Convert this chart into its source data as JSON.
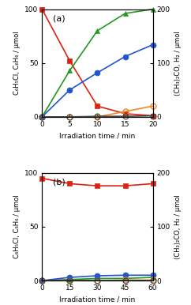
{
  "panel_a": {
    "title": "(a)",
    "xlim": [
      0,
      20
    ],
    "xticks": [
      0,
      5,
      10,
      15,
      20
    ],
    "xlabel": "Irradiation time / min",
    "ylim_left": [
      0,
      100
    ],
    "ylim_right": [
      0,
      200
    ],
    "yticks_left": [
      0,
      50,
      100
    ],
    "yticks_right": [
      0,
      100,
      200
    ],
    "ylabel_left": "C₆H₅Cl, C₆H₆ / μmol",
    "ylabel_right": "(CH₃)₂CO, H₂ / μmol",
    "chlorobenzene": {
      "x": [
        0,
        5,
        10,
        15,
        20
      ],
      "y": [
        100,
        52,
        10,
        3,
        1
      ],
      "color": "#dd2211",
      "marker": "s"
    },
    "benzene": {
      "x": [
        0,
        5,
        10,
        15,
        20
      ],
      "y": [
        0,
        43,
        80,
        96,
        100
      ],
      "color": "#229922",
      "marker": "^"
    },
    "h2_blue": {
      "x": [
        0,
        5,
        10,
        15,
        20
      ],
      "y": [
        0,
        50,
        82,
        112,
        134
      ],
      "color": "#2255cc",
      "marker": "o",
      "filled": true
    },
    "acetone": {
      "x": [
        0,
        5,
        10,
        15,
        20
      ],
      "y": [
        0,
        0,
        0,
        10,
        20
      ],
      "color": "#ee8822",
      "marker": "o",
      "filled": false
    },
    "h2_open": {
      "x": [
        0,
        5,
        10,
        15,
        20
      ],
      "y": [
        0,
        0,
        1,
        1,
        2
      ],
      "color": "#888888",
      "marker": "o",
      "filled": false
    }
  },
  "panel_b": {
    "title": "(b)",
    "xlim": [
      0,
      60
    ],
    "xticks": [
      0,
      15,
      30,
      45,
      60
    ],
    "xlabel": "Irradiation time / min",
    "ylim_left": [
      0,
      100
    ],
    "ylim_right": [
      0,
      200
    ],
    "yticks_left": [
      0,
      50,
      100
    ],
    "yticks_right": [
      0,
      100,
      200
    ],
    "ylabel_left": "C₆H₅Cl, C₆H₆ / μmol",
    "ylabel_right": "(CH₃)₂CO, H₂ / μmol",
    "chlorobenzene": {
      "x": [
        0,
        15,
        30,
        45,
        60
      ],
      "y": [
        95,
        90,
        88,
        88,
        90
      ],
      "color": "#dd2211",
      "marker": "s"
    },
    "benzene": {
      "x": [
        0,
        15,
        30,
        45,
        60
      ],
      "y": [
        0,
        1,
        2,
        2,
        3
      ],
      "color": "#229922",
      "marker": "^"
    },
    "h2_blue": {
      "x": [
        0,
        15,
        30,
        45,
        60
      ],
      "y": [
        0,
        6,
        9,
        10,
        10
      ],
      "color": "#2255cc",
      "marker": "o",
      "filled": true
    },
    "acetone": {
      "x": [
        0,
        15,
        30,
        45,
        60
      ],
      "y": [
        0,
        0,
        0,
        1,
        1
      ],
      "color": "#ee8822",
      "marker": "o",
      "filled": false
    },
    "h2_open": {
      "x": [
        0,
        15,
        30,
        45,
        60
      ],
      "y": [
        0,
        0,
        0,
        0,
        0
      ],
      "color": "#888888",
      "marker": "o",
      "filled": false
    }
  }
}
